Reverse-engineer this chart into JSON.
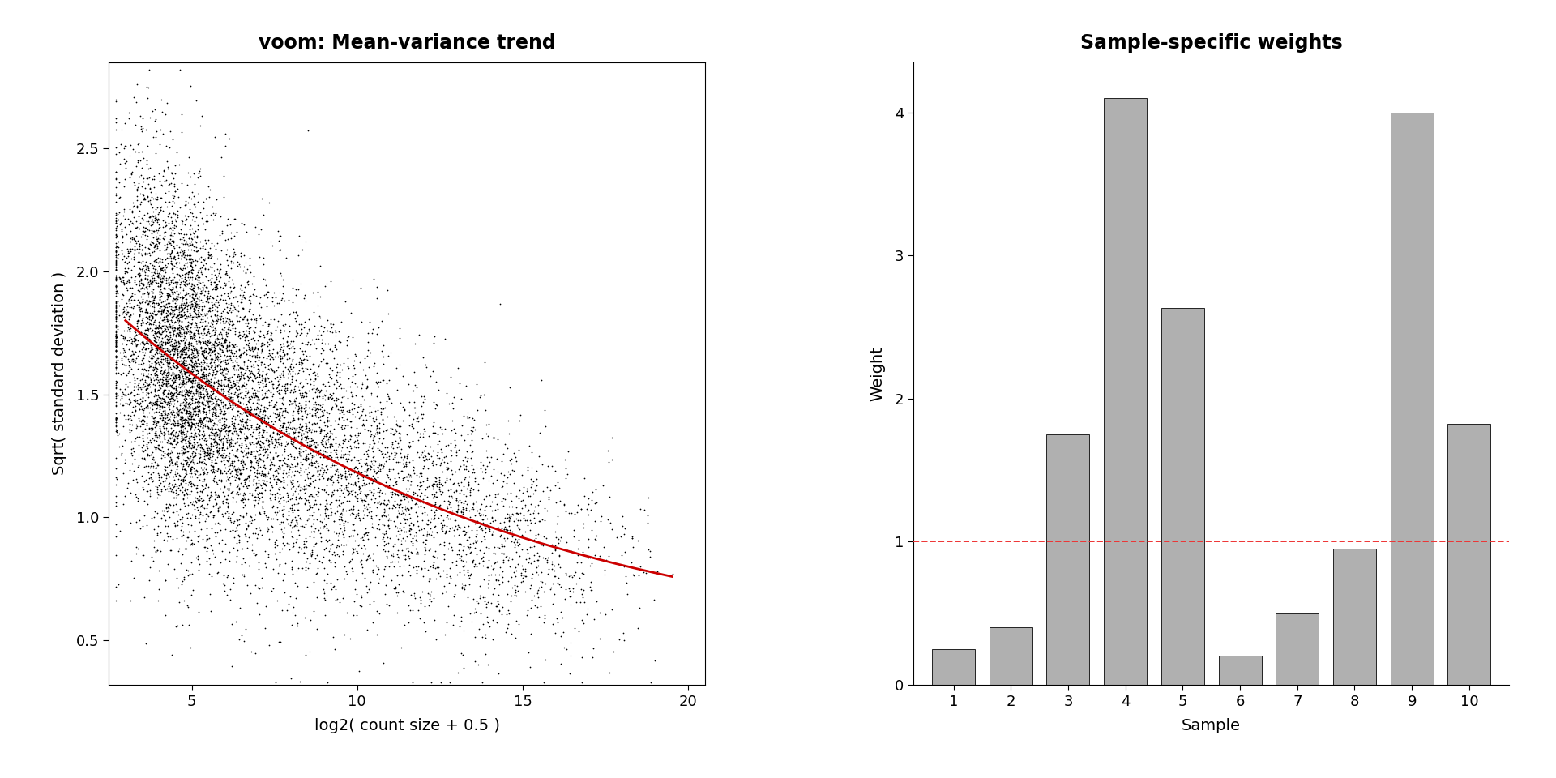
{
  "title_left": "voom: Mean-variance trend",
  "title_right": "Sample-specific weights",
  "xlabel_left": "log2( count size + 0.5 )",
  "ylabel_left": "Sqrt( standard deviation )",
  "xlabel_right": "Sample",
  "ylabel_right": "Weight",
  "xlim_left": [
    2.5,
    20.5
  ],
  "ylim_left": [
    0.32,
    2.85
  ],
  "xticks_left": [
    5,
    10,
    15,
    20
  ],
  "yticks_left": [
    0.5,
    1.0,
    1.5,
    2.0,
    2.5
  ],
  "bar_values": [
    0.25,
    0.4,
    1.75,
    4.1,
    2.63,
    0.2,
    0.5,
    0.95,
    4.0,
    1.82
  ],
  "bar_labels": [
    "1",
    "2",
    "3",
    "4",
    "5",
    "6",
    "7",
    "8",
    "9",
    "10"
  ],
  "bar_color": "#b0b0b0",
  "bar_edgecolor": "#222222",
  "hline_y": 1.0,
  "hline_color": "#ee3333",
  "hline_style": "--",
  "ylim_right": [
    0,
    4.35
  ],
  "yticks_right": [
    0,
    1,
    2,
    3,
    4
  ],
  "scatter_seed": 42,
  "n_points": 10000,
  "trend_color": "#cc0000",
  "scatter_color": "#000000",
  "scatter_size": 1.5,
  "background_color": "#ffffff",
  "title_fontsize": 17,
  "axis_label_fontsize": 14,
  "tick_fontsize": 13
}
